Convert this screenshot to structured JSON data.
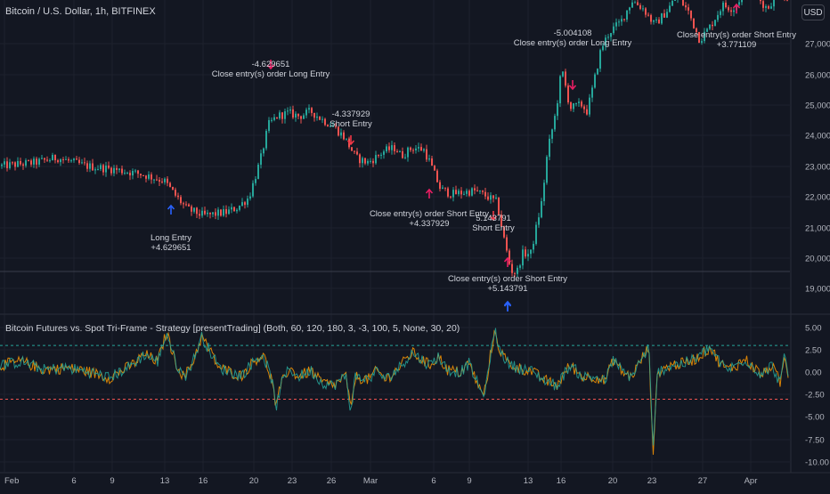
{
  "header": {
    "symbol_title": "Bitcoin / U.S. Dollar, 1h, BITFINEX",
    "currency_badge": "USD"
  },
  "indicator": {
    "title": "Bitcoin Futures vs. Spot Tri-Frame - Strategy [presentTrading] (Both, 60, 120, 180, 3, -3, 100, 5, None, 30, 20)"
  },
  "colors": {
    "background": "#131722",
    "grid": "#1e222d",
    "up": "#26a69a",
    "down": "#ef5350",
    "long_arrow": "#2962ff",
    "short_arrow": "#f23645",
    "close_arrow": "#e91e63",
    "upper_threshold": "#26a69a",
    "lower_threshold": "#ef5350",
    "osc_line_a": "#26a69a",
    "osc_line_b": "#ff9800",
    "text": "#d1d4dc",
    "axis_text": "#b2b5be"
  },
  "chart_data": [
    {
      "type": "candlestick",
      "title": "Bitcoin / U.S. Dollar, 1h, BITFINEX",
      "x_tick_labels": [
        "Feb",
        "6",
        "9",
        "13",
        "16",
        "20",
        "23",
        "26",
        "Mar",
        "6",
        "9",
        "13",
        "16",
        "20",
        "23",
        "27",
        "Apr"
      ],
      "y_tick_labels": [
        "27,000.0",
        "26,000.0",
        "25,000.0",
        "24,000.0",
        "23,000.0",
        "22,000.0",
        "21,000.0",
        "20,000.0",
        "19,000.0"
      ],
      "ylim": [
        18700,
        28000
      ],
      "grid": true,
      "price_path": [
        [
          0,
          23150
        ],
        [
          6,
          23250
        ],
        [
          10,
          23400
        ],
        [
          15,
          23150
        ],
        [
          20,
          23050
        ],
        [
          25,
          22900
        ],
        [
          29,
          22700
        ],
        [
          31,
          22250
        ],
        [
          33,
          21850
        ],
        [
          36,
          21650
        ],
        [
          38,
          21700
        ],
        [
          40,
          21750
        ],
        [
          42,
          21900
        ],
        [
          44,
          22200
        ],
        [
          46,
          23300
        ],
        [
          47.5,
          24400
        ],
        [
          49,
          24650
        ],
        [
          51,
          24750
        ],
        [
          53,
          24650
        ],
        [
          55,
          24800
        ],
        [
          57,
          24550
        ],
        [
          59,
          24350
        ],
        [
          61,
          24000
        ],
        [
          63,
          23400
        ],
        [
          65,
          23250
        ],
        [
          66,
          23350
        ],
        [
          68,
          23600
        ],
        [
          70,
          23700
        ],
        [
          71,
          23450
        ],
        [
          73,
          23700
        ],
        [
          75,
          23650
        ],
        [
          76,
          23300
        ],
        [
          78,
          22450
        ],
        [
          80,
          22300
        ],
        [
          82,
          22350
        ],
        [
          84,
          22400
        ],
        [
          86,
          22250
        ],
        [
          88,
          22050
        ],
        [
          89.5,
          20750
        ],
        [
          90.5,
          20000
        ],
        [
          91.5,
          19900
        ],
        [
          92.5,
          20500
        ],
        [
          94,
          20500
        ],
        [
          96,
          22100
        ],
        [
          97,
          23600
        ],
        [
          98.5,
          24800
        ],
        [
          99.5,
          26100
        ],
        [
          101,
          24900
        ],
        [
          103,
          25000
        ],
        [
          104,
          24800
        ],
        [
          105,
          25500
        ],
        [
          106.5,
          26700
        ],
        [
          108,
          27200
        ],
        [
          110,
          27500
        ],
        [
          112,
          28150
        ],
        [
          114,
          27900
        ],
        [
          116,
          27400
        ],
        [
          118,
          27800
        ],
        [
          120,
          28300
        ],
        [
          122,
          27800
        ],
        [
          124,
          26950
        ],
        [
          126,
          27400
        ],
        [
          128,
          28000
        ],
        [
          130,
          27900
        ],
        [
          132,
          28450
        ],
        [
          134,
          28300
        ],
        [
          136,
          27900
        ],
        [
          138,
          28450
        ],
        [
          140,
          28000
        ]
      ],
      "annotations": [
        {
          "kind": "long-entry",
          "x": 38.7,
          "y": 21450,
          "dir": "up",
          "lines": [
            "Long Entry",
            "+4.629651"
          ],
          "text_pos": "below"
        },
        {
          "kind": "close-long",
          "x": 60.4,
          "y": 25050,
          "dir": "down",
          "lines": [
            "-4.629651",
            "Close entry(s) order Long Entry"
          ],
          "text_pos": "above"
        },
        {
          "kind": "short-entry",
          "x": 79.9,
          "y": 23900,
          "dir": "down",
          "lines": [
            "-4.337929",
            "Short Entry"
          ],
          "text_pos": "above"
        },
        {
          "kind": "close-short",
          "x": 97.4,
          "y": 22100,
          "dir": "up",
          "lines": [
            "Close entry(s) order Short Entry",
            "+4.337929"
          ],
          "text_pos": "below"
        },
        {
          "kind": "short-entry",
          "x": 111.1,
          "y": 20650,
          "dir": "down",
          "lines": [
            "5.143791",
            "Short Entry"
          ],
          "text_pos": "above"
        },
        {
          "kind": "close-short",
          "x": 115.4,
          "y": 19850,
          "dir": "up",
          "lines": [],
          "text_pos": "none"
        },
        {
          "kind": "long-entry",
          "x": 115.0,
          "y": 18950,
          "dir": "up",
          "lines": [
            "Close entry(s) order Short Entry",
            "+5.143791"
          ],
          "text_pos": "above"
        },
        {
          "kind": "short-entry",
          "x": 131.0,
          "y": 25200,
          "dir": "down",
          "lines": [
            "-5.004108",
            "Close entry(s) order Long Entry"
          ],
          "text_pos": "above"
        },
        {
          "kind": "close-short",
          "x": 167.0,
          "y": 27550,
          "dir": "up",
          "lines": [
            "Close entry(s) order Short Entry",
            "+3.771109"
          ],
          "text_pos": "below"
        }
      ]
    },
    {
      "type": "line",
      "title": "Bitcoin Futures vs. Spot Tri-Frame - Strategy [presentTrading] (Both, 60, 120, 180, 3, -3, 100, 5, None, 30, 20)",
      "y_tick_labels": [
        "5.00",
        "2.50",
        "0.00",
        "-2.50",
        "-5.00",
        "-7.50",
        "-10.00"
      ],
      "ylim": [
        -10.5,
        5.8
      ],
      "thresholds": [
        3,
        -3
      ],
      "grid": true,
      "osc_path": [
        [
          0,
          0.8
        ],
        [
          5,
          1.2
        ],
        [
          10,
          0.3
        ],
        [
          15,
          0.5
        ],
        [
          20,
          0.1
        ],
        [
          25,
          -0.6
        ],
        [
          30,
          0.8
        ],
        [
          33,
          2.0
        ],
        [
          36,
          1.2
        ],
        [
          38,
          4.5
        ],
        [
          40,
          1.2
        ],
        [
          42,
          -0.6
        ],
        [
          44,
          1.2
        ],
        [
          46,
          4.0
        ],
        [
          48,
          2.3
        ],
        [
          50,
          0.5
        ],
        [
          55,
          -0.4
        ],
        [
          58,
          1.3
        ],
        [
          60,
          2.0
        ],
        [
          62,
          -0.8
        ],
        [
          63,
          -4.0
        ],
        [
          64,
          -1.5
        ],
        [
          66,
          0.5
        ],
        [
          68,
          -0.5
        ],
        [
          71,
          0.2
        ],
        [
          73,
          -1.0
        ],
        [
          76,
          -1.5
        ],
        [
          79,
          -0.4
        ],
        [
          80,
          -4.5
        ],
        [
          81,
          -0.5
        ],
        [
          84,
          -0.8
        ],
        [
          86,
          0.2
        ],
        [
          88,
          -0.8
        ],
        [
          91,
          0.5
        ],
        [
          94,
          2.2
        ],
        [
          96,
          1.5
        ],
        [
          98,
          0.8
        ],
        [
          100,
          1.8
        ],
        [
          102,
          0.3
        ],
        [
          105,
          0.0
        ],
        [
          107,
          1.0
        ],
        [
          110,
          -2.5
        ],
        [
          111,
          -1.5
        ],
        [
          112,
          2.5
        ],
        [
          113,
          4.5
        ],
        [
          114,
          2.5
        ],
        [
          116,
          1.0
        ],
        [
          118,
          0.5
        ],
        [
          121,
          0.2
        ],
        [
          124,
          -0.8
        ],
        [
          127,
          -1.5
        ],
        [
          130,
          0.8
        ],
        [
          133,
          -0.5
        ],
        [
          136,
          -0.5
        ],
        [
          138,
          -1.0
        ],
        [
          140,
          1.5
        ],
        [
          142,
          0.0
        ],
        [
          144,
          -0.5
        ],
        [
          148,
          2.8
        ],
        [
          149,
          -8.8
        ],
        [
          150,
          0.0
        ],
        [
          153,
          0.8
        ],
        [
          156,
          1.0
        ],
        [
          159,
          1.6
        ],
        [
          162,
          2.8
        ],
        [
          164,
          1.2
        ],
        [
          166,
          0.3
        ],
        [
          168,
          0.8
        ],
        [
          170,
          1.5
        ],
        [
          172,
          0.5
        ],
        [
          174,
          -0.3
        ],
        [
          176,
          0.8
        ],
        [
          178,
          -1.2
        ],
        [
          179,
          1.8
        ],
        [
          180,
          -0.6
        ]
      ]
    }
  ]
}
